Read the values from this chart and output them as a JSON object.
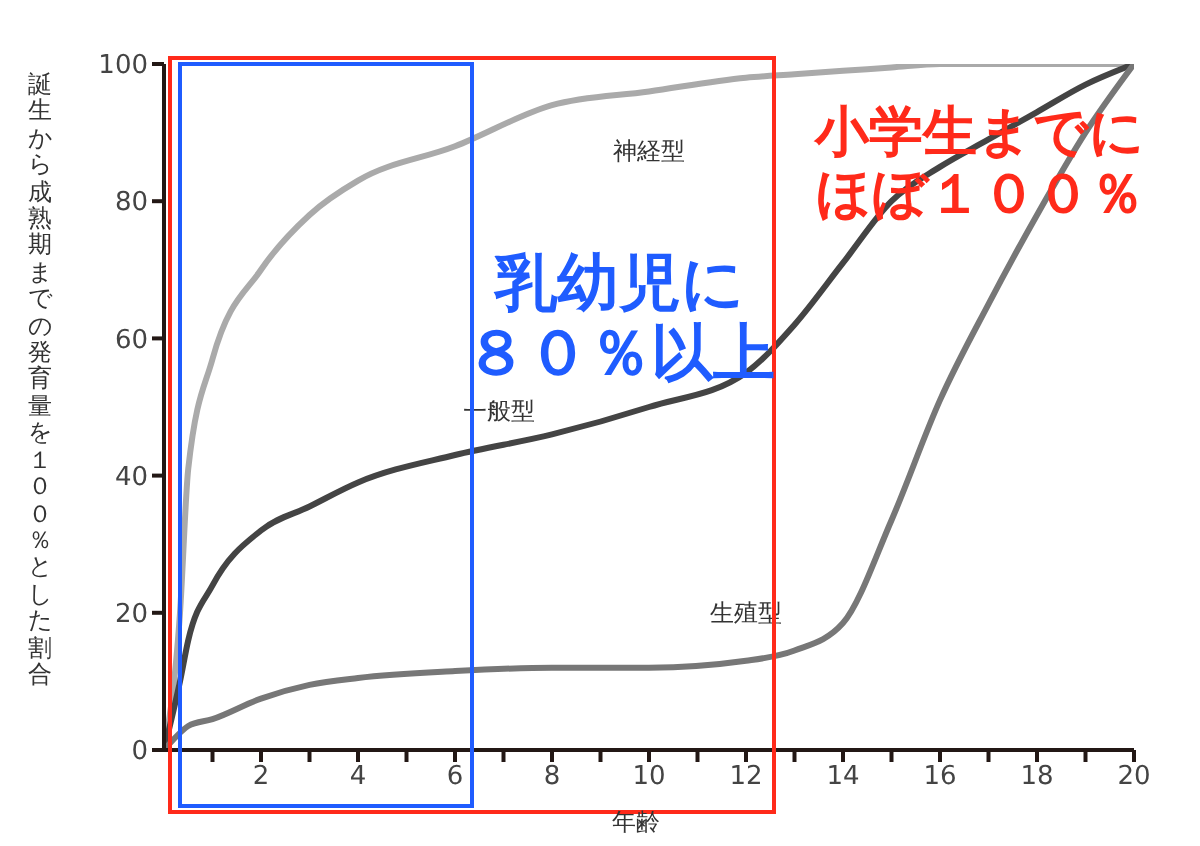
{
  "chart_data": {
    "type": "line",
    "xlabel": "年齢",
    "ylabel": "誕生から成熟期までの発育量を１００％とした割合",
    "x": [
      0,
      0.33,
      0.5,
      1,
      2,
      3,
      4,
      6,
      8,
      10,
      12,
      13,
      14,
      15,
      16,
      17,
      18,
      19,
      20
    ],
    "series": [
      {
        "name": "神経型",
        "color": "#aaaaaa",
        "values": [
          0,
          20,
          41,
          57,
          70,
          78,
          83,
          88,
          94,
          96,
          98,
          98.5,
          99,
          99.5,
          100,
          100,
          100,
          100,
          100
        ]
      },
      {
        "name": "一般型",
        "color": "#444444",
        "values": [
          0,
          10,
          16,
          24,
          32,
          35.5,
          39,
          43,
          46,
          50,
          55,
          62,
          71,
          80,
          85,
          89,
          93,
          97,
          100
        ]
      },
      {
        "name": "生殖型",
        "color": "#777777",
        "values": [
          0,
          2.5,
          3.5,
          4.5,
          7.5,
          9.5,
          10.5,
          11.5,
          12,
          12,
          13,
          14.5,
          18.5,
          33.5,
          51,
          65,
          78,
          90,
          100
        ]
      }
    ],
    "xlim": [
      0,
      20
    ],
    "xticks": [
      {
        "value": 1,
        "label": null
      },
      2,
      {
        "value": 3,
        "label": null
      },
      4,
      {
        "value": 5,
        "label": null
      },
      6,
      {
        "value": 7,
        "label": null
      },
      8,
      {
        "value": 9,
        "label": null
      },
      10,
      {
        "value": 11,
        "label": null
      },
      12,
      {
        "value": 13,
        "label": null
      },
      14,
      {
        "value": 15,
        "label": null
      },
      16,
      {
        "value": 17,
        "label": null
      },
      18,
      {
        "value": 19,
        "label": null
      },
      20
    ],
    "ylim": [
      0,
      100
    ],
    "yticks": [
      0,
      20,
      40,
      60,
      80,
      100
    ],
    "grid": false,
    "legend": false,
    "marker": "none",
    "line_style": "solid",
    "annotations": [
      "小学生までに",
      "ほぼ１００％",
      "乳幼児に",
      "８０％以上"
    ]
  }
}
